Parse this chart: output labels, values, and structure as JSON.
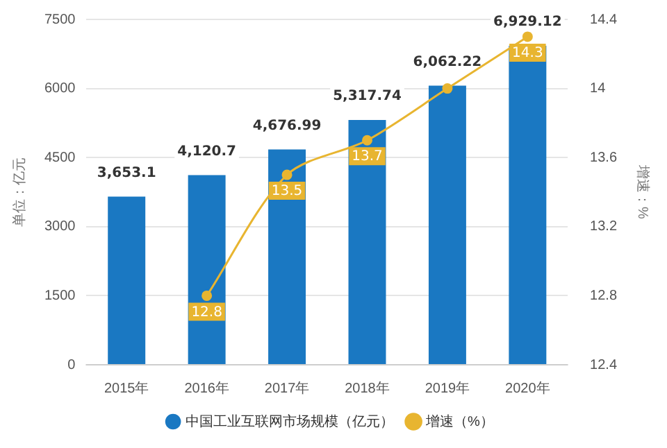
{
  "chart_data": {
    "type": "bar",
    "categories": [
      "2015年",
      "2016年",
      "2017年",
      "2018年",
      "2019年",
      "2020年"
    ],
    "series": [
      {
        "name": "中国工业互联网市场规模（亿元）",
        "color": "#1a78c2",
        "values": [
          3653.1,
          4120.7,
          4676.99,
          5317.74,
          6062.22,
          6929.12
        ],
        "value_labels": [
          "3,653.1",
          "4,120.7",
          "4,676.99",
          "5,317.74",
          "6,062.22",
          "6,929.12"
        ]
      },
      {
        "name": "增速（%）",
        "type": "line",
        "axis": "y2",
        "color": "#e8b530",
        "values": [
          null,
          12.8,
          13.5,
          13.7,
          14,
          14.3
        ],
        "value_labels": [
          null,
          "12.8",
          "13.5",
          "13.7",
          null,
          "14.3"
        ]
      }
    ],
    "ylabel": "单位：亿元",
    "y2label": "增速：%",
    "ylim": [
      0,
      7500
    ],
    "yticks": [
      0,
      1500,
      3000,
      4500,
      6000,
      7500
    ],
    "y2lim": [
      12.4,
      14.4
    ],
    "y2ticks": [
      12.4,
      12.8,
      13.2,
      13.6,
      14,
      14.4
    ],
    "grid": "y",
    "legend": "bottom",
    "marker": "circle"
  }
}
